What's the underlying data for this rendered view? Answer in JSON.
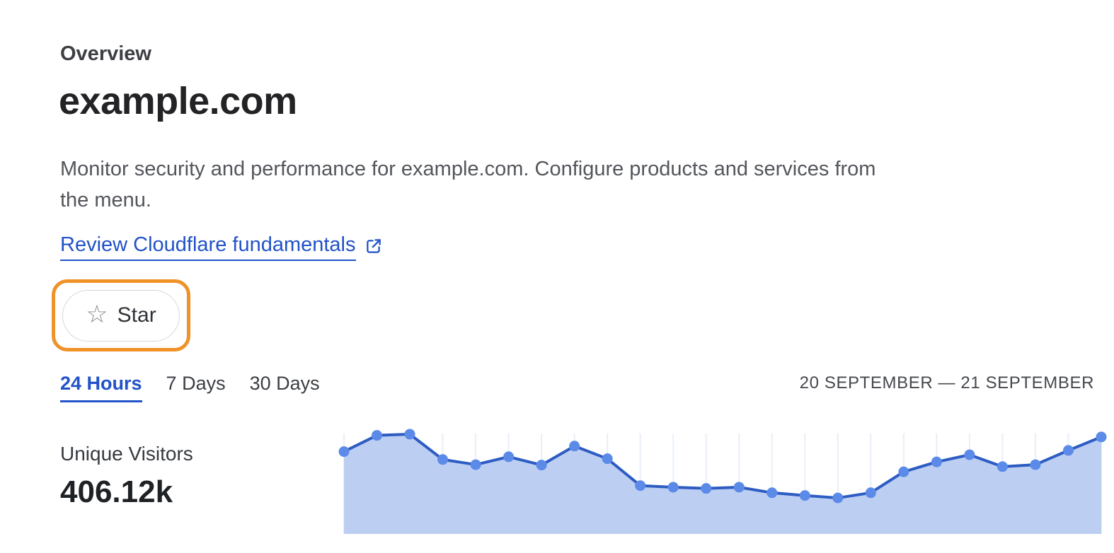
{
  "colors": {
    "accent_blue": "#2152c8",
    "annotation_orange": "#ef9227"
  },
  "page": {
    "eyebrow": "Overview",
    "title": "example.com",
    "description_lines": [
      "Monitor security and performance for example.com. Configure products and services from",
      "the menu."
    ],
    "fundamentals_link": {
      "label": "Review Cloudflare fundamentals",
      "icon": "external-link"
    },
    "star_button": {
      "label": "Star",
      "icon": "star-outline"
    }
  },
  "time_tabs": {
    "items": [
      {
        "label": "24 Hours",
        "active": true
      },
      {
        "label": "7 Days",
        "active": false
      },
      {
        "label": "30 Days",
        "active": false
      }
    ],
    "date_range": "20 SEPTEMBER — 21 SEPTEMBER"
  },
  "stats": {
    "label": "Unique Visitors",
    "value": "406.12k"
  },
  "chart_data": {
    "type": "area",
    "title": "Unique Visitors over 24 Hours",
    "xlabel": "",
    "ylabel": "Unique Visitors",
    "x_description": "24 hourly points across 20 September — 21 September; tick gridline at each point, no axis labels shown",
    "series": [
      {
        "name": "Unique Visitors",
        "unit": "thousands (estimated from pixel heights; total 406.12k)",
        "values": [
          20.8,
          24.9,
          25.2,
          18.8,
          17.5,
          19.5,
          17.4,
          22.2,
          19.0,
          12.2,
          11.8,
          11.5,
          11.8,
          10.4,
          9.7,
          9.1,
          10.4,
          15.7,
          18.2,
          20.0,
          17.0,
          17.5,
          21.1,
          24.5
        ]
      }
    ],
    "ylim": [
      0,
      27.7
    ],
    "grid": "vertical-only",
    "legend": "none",
    "markers": "filled circles on every point",
    "colors": {
      "line": "#2d5cc3",
      "dot": "#5b8ae8",
      "fill": "#bccff2",
      "gridline": "#e9eef7"
    }
  }
}
